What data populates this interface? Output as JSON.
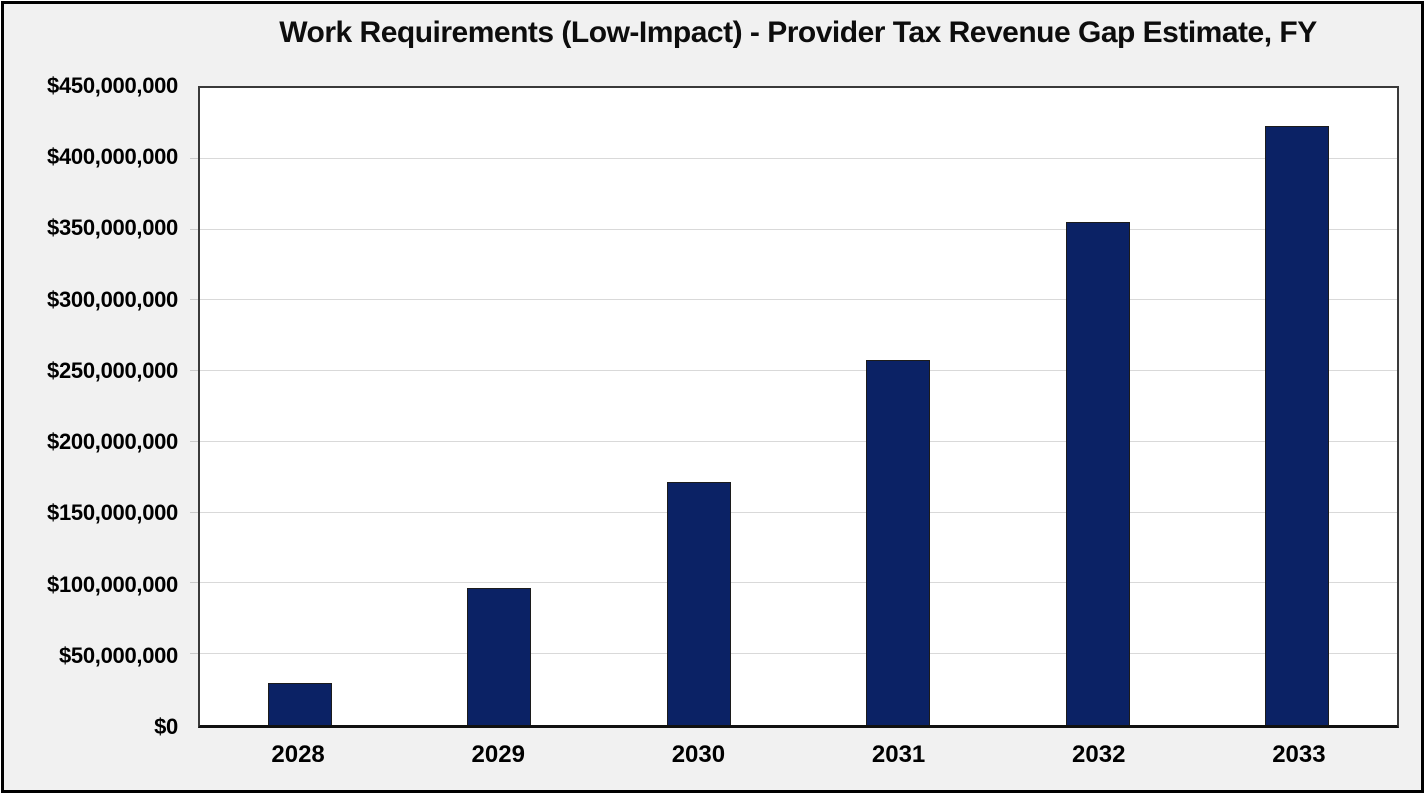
{
  "frame": {
    "background": "#f1f1f1",
    "border_color": "#000000"
  },
  "chart_data": {
    "type": "bar",
    "title": "Work Requirements (Low-Impact) - Provider Tax Revenue Gap Estimate, FY",
    "categories": [
      "2028",
      "2029",
      "2030",
      "2031",
      "2032",
      "2033"
    ],
    "values": [
      30000000,
      97000000,
      172000000,
      258000000,
      355000000,
      423000000
    ],
    "xlabel": "",
    "ylabel": "",
    "ylim": [
      0,
      450000000
    ],
    "ytick_step": 50000000,
    "ytick_labels": [
      "$0",
      "$50,000,000",
      "$100,000,000",
      "$150,000,000",
      "$200,000,000",
      "$250,000,000",
      "$300,000,000",
      "$350,000,000",
      "$400,000,000",
      "$450,000,000"
    ],
    "grid": true,
    "legend": false,
    "bar_color": "#0b2265",
    "bar_border_color": "#1c1c1c",
    "gridline_color": "#d9d9d9",
    "plot_background": "#ffffff",
    "plot_border_color": "#3a3a3a",
    "title_color": "#0d0d0d",
    "label_color": "#000000"
  }
}
